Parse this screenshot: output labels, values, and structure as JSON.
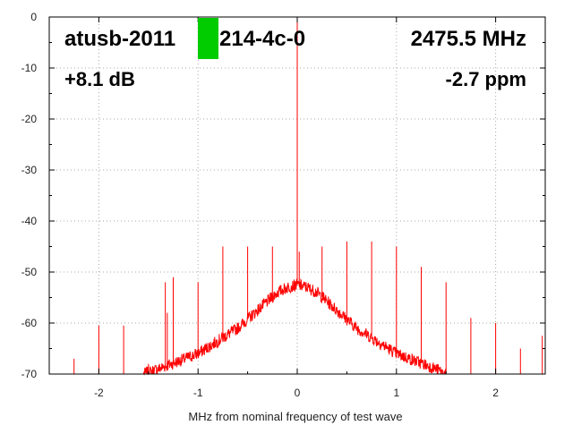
{
  "chart_data": {
    "type": "line",
    "title_left": "atusb-2011",
    "title_right_frag": "214-4c-0",
    "frequency_label": "2475.5 MHz",
    "gain_label": "+8.1 dB",
    "ppm_label": "-2.7 ppm",
    "xlabel": "MHz from nominal frequency of test wave",
    "ylabel": "",
    "xlim": [
      -2.5,
      2.5
    ],
    "ylim": [
      -70,
      0
    ],
    "x_ticks": [
      -2,
      -1,
      0,
      1,
      2
    ],
    "x_tick_labels": [
      "-2",
      "-1",
      "0",
      "1",
      "2"
    ],
    "y_ticks": [
      0,
      -10,
      -20,
      -30,
      -40,
      -50,
      -60,
      -70
    ],
    "y_tick_labels": [
      "0",
      "-10",
      "-20",
      "-30",
      "-40",
      "-50",
      "-60",
      "-70"
    ],
    "grid": true,
    "series_color": "#ff0000",
    "marker_color": "#00cc00",
    "series": [
      {
        "name": "",
        "noise_floor_envelope": {
          "x": [
            -1.55,
            -1.4,
            -1.2,
            -1.0,
            -0.8,
            -0.6,
            -0.4,
            -0.2,
            -0.1,
            0.0,
            0.1,
            0.2,
            0.4,
            0.6,
            0.8,
            1.0,
            1.2,
            1.4,
            1.5
          ],
          "y": [
            -70,
            -69,
            -67.5,
            -66,
            -63.5,
            -61,
            -57.5,
            -54,
            -53,
            -52.5,
            -53,
            -54,
            -57.5,
            -61,
            -63.5,
            -66,
            -67.5,
            -69,
            -70
          ]
        },
        "spurs": {
          "x": [
            -2.25,
            -2.0,
            -1.75,
            -1.5,
            -1.33,
            -1.31,
            -1.25,
            -1.0,
            -0.75,
            -0.5,
            -0.25,
            -0.02,
            0.0,
            0.02,
            0.25,
            0.5,
            0.75,
            1.0,
            1.25,
            1.5,
            1.75,
            2.0,
            2.25,
            2.47
          ],
          "y": [
            -67,
            -60.5,
            -60.5,
            -68,
            -52,
            -58,
            -51,
            -52,
            -45,
            -45,
            -45,
            -53,
            0,
            -46,
            -45,
            -44,
            -44,
            -45,
            -49,
            -52,
            -59,
            -60,
            -65,
            -62.5
          ]
        }
      }
    ]
  }
}
